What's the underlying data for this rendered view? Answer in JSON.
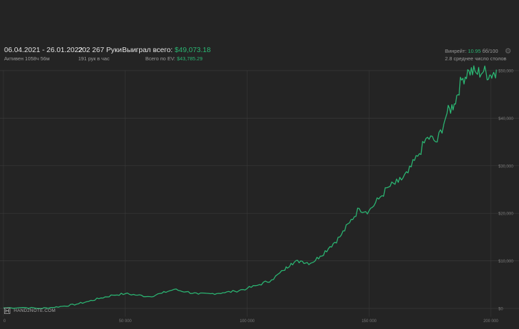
{
  "header": {
    "date_range": "06.04.2021 - 26.01.2022",
    "active_time": "Активен 1058ч 56м",
    "hands_label": "202 267 Руки",
    "hands_per_hour": "191 рук в час",
    "won_total_label": "Выиграл всего:",
    "won_total_value": "$49,073.18",
    "ev_total_label": "Всего по EV:",
    "ev_total_value": "$43,785.29",
    "winrate_label": "Винрейт:",
    "winrate_value": "10.95",
    "winrate_unit": "бб/100",
    "avg_tables": "2.8 среднее число столов"
  },
  "brand": {
    "name": "HAND2NOTE.COM"
  },
  "colors": {
    "line": "#2bb673",
    "background": "#242424",
    "grid": "#3a3a3a"
  },
  "icons": {
    "settings": "gear-icon",
    "logo": "hand2note-logo-icon"
  },
  "chart_data": {
    "type": "line",
    "title": "",
    "xlabel": "",
    "ylabel": "",
    "xlim": [
      0,
      202267
    ],
    "ylim": [
      0,
      50000
    ],
    "x_ticks": [
      0,
      50000,
      100000,
      150000,
      200000
    ],
    "x_tick_labels": [
      "0",
      "50 000",
      "100 000",
      "150 000",
      "200 000"
    ],
    "y_ticks": [
      0,
      10000,
      20000,
      30000,
      40000,
      50000
    ],
    "y_tick_labels": [
      "$0",
      "$10,000",
      "$20,000",
      "$30,000",
      "$40,000",
      "$50,000"
    ],
    "grid": true,
    "series": [
      {
        "x": [
          0,
          8000,
          15000,
          20000,
          25000,
          30000,
          35000,
          40000,
          45000,
          50000,
          55000,
          60000,
          65000,
          70000,
          75000,
          80000,
          85000,
          90000,
          95000,
          100000,
          105000,
          110000,
          115000,
          118000,
          122000,
          126000,
          130000,
          134000,
          138000,
          142000,
          146000,
          150000,
          154000,
          158000,
          162000,
          166000,
          170000,
          174000,
          178000,
          182000,
          185000,
          188000,
          191000,
          194000,
          197000,
          200000,
          202267
        ],
        "y": [
          100,
          200,
          0,
          200,
          500,
          900,
          1500,
          2200,
          2800,
          3100,
          2800,
          2500,
          3200,
          4000,
          3500,
          3000,
          3100,
          3300,
          3600,
          4200,
          5000,
          6000,
          8000,
          9500,
          10000,
          9500,
          11000,
          13000,
          15000,
          18000,
          21000,
          20500,
          23000,
          25500,
          26500,
          28500,
          32000,
          36000,
          35000,
          41000,
          43000,
          48000,
          50000,
          49500,
          49800,
          49000,
          50200
        ]
      }
    ]
  }
}
